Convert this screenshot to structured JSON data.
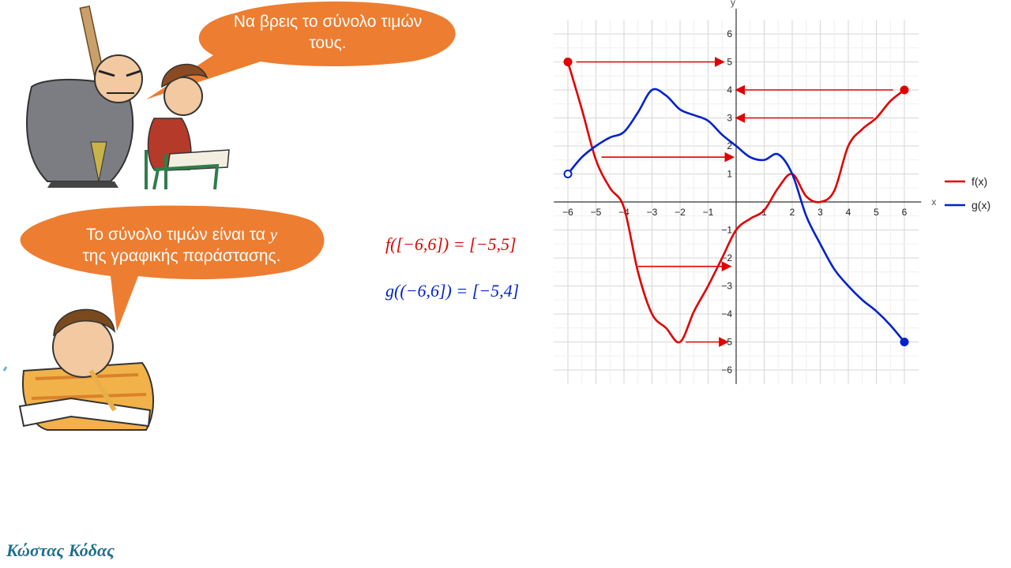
{
  "slide": {
    "bubble_top": "Να βρεις το σύνολο τιμών τους.",
    "bubble_bottom_line1": "Το σύνολο τιμών είναι τα",
    "bubble_bottom_var": "y",
    "bubble_bottom_line2": "της γραφικής παράστασης.",
    "formula_f": "f([−6,6]) = [−5,5]",
    "formula_g": "g((−6,6]) = [−5,4]",
    "author": "Κώστας Κόδας",
    "colors": {
      "bubble": "#ed7d31",
      "f": "#e00000",
      "g": "#0022cc",
      "author": "#1f6f8b"
    }
  },
  "chart_data": {
    "type": "line",
    "xlabel": "x",
    "ylabel": "y",
    "xlim": [
      -6,
      6
    ],
    "ylim": [
      -6,
      6
    ],
    "grid": true,
    "legend": "right",
    "x_ticks": [
      "−6",
      "−5",
      "−4",
      "−3",
      "−2",
      "−1",
      "1",
      "2",
      "3",
      "4",
      "5",
      "6"
    ],
    "y_ticks": [
      "6",
      "5",
      "4",
      "3",
      "2",
      "1",
      "−1",
      "−2",
      "−3",
      "−4",
      "−5",
      "−6"
    ],
    "series": [
      {
        "name": "f(x)",
        "color": "#e00000",
        "x": [
          -6,
          -5.5,
          -5,
          -4.5,
          -4,
          -3.5,
          -3,
          -2.5,
          -2,
          -1.5,
          -1,
          -0.5,
          0,
          0.5,
          1,
          1.5,
          2,
          2.5,
          3,
          3.5,
          4,
          4.5,
          5,
          5.5,
          6
        ],
        "y": [
          5,
          3.3,
          1.5,
          0.5,
          -0.2,
          -2.5,
          -4,
          -4.5,
          -5,
          -3.9,
          -3,
          -2,
          -1,
          -0.6,
          -0.3,
          0.5,
          1,
          0.2,
          0,
          0.4,
          2,
          2.6,
          3,
          3.6,
          4
        ],
        "start": "closed",
        "end": "closed"
      },
      {
        "name": "g(x)",
        "color": "#0022cc",
        "x": [
          -6,
          -5.5,
          -5,
          -4.5,
          -4,
          -3.5,
          -3,
          -2.5,
          -2,
          -1.5,
          -1,
          -0.5,
          0,
          0.5,
          1,
          1.5,
          2,
          2.5,
          3,
          3.5,
          4,
          4.5,
          5,
          5.5,
          6
        ],
        "y": [
          1,
          1.6,
          2,
          2.3,
          2.5,
          3.2,
          4,
          3.8,
          3.3,
          3.1,
          2.9,
          2.4,
          2,
          1.6,
          1.5,
          1.7,
          1,
          -0.5,
          -1.5,
          -2.4,
          -3,
          -3.5,
          -3.9,
          -4.4,
          -5
        ],
        "start": "open",
        "end": "closed"
      }
    ],
    "arrows": [
      {
        "color": "#e00000",
        "from": [
          -5.7,
          5
        ],
        "to": [
          -0.45,
          5
        ]
      },
      {
        "color": "#e00000",
        "from": [
          5.6,
          4
        ],
        "to": [
          0,
          4
        ]
      },
      {
        "color": "#e00000",
        "from": [
          4.9,
          3
        ],
        "to": [
          0,
          3
        ]
      },
      {
        "color": "#e00000",
        "from": [
          -4.8,
          1.6
        ],
        "to": [
          -0.1,
          1.6
        ]
      },
      {
        "color": "#e00000",
        "from": [
          -3.5,
          -2.3
        ],
        "to": [
          -0.2,
          -2.3
        ]
      },
      {
        "color": "#e00000",
        "from": [
          -1.8,
          -5
        ],
        "to": [
          -0.3,
          -5
        ]
      }
    ]
  }
}
